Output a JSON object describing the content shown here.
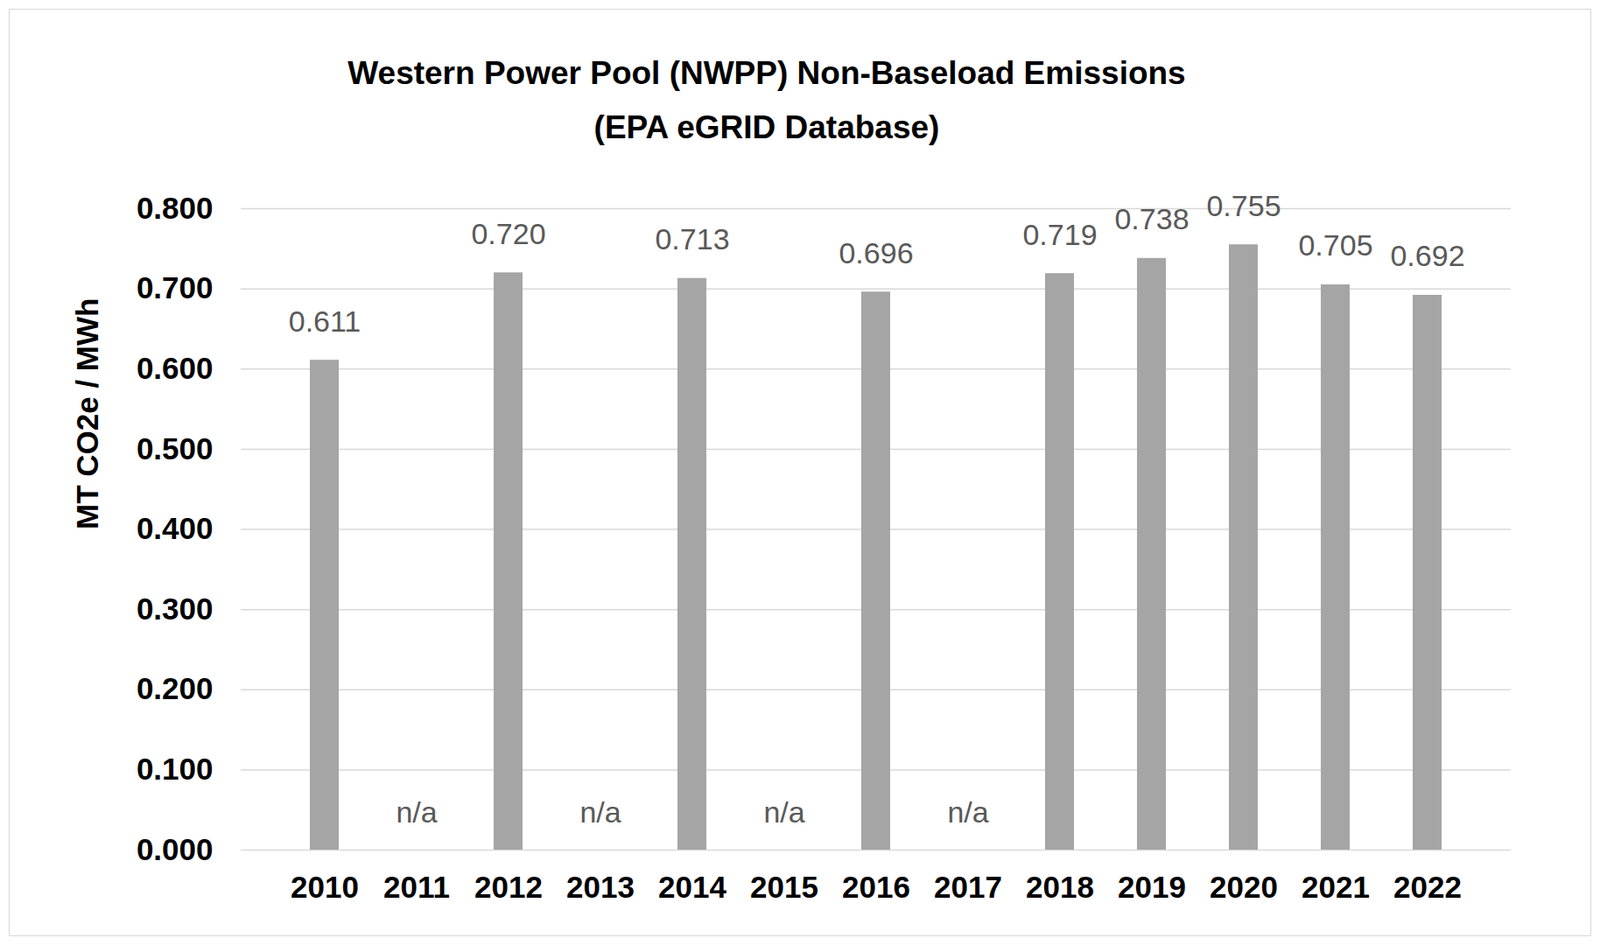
{
  "chart_data": {
    "type": "bar",
    "title": "Western Power Pool (NWPP) Non-Baseload Emissions",
    "subtitle": "(EPA eGRID Database)",
    "y_label": "MT CO2e / MWh",
    "categories": [
      "2010",
      "2011",
      "2012",
      "2013",
      "2014",
      "2015",
      "2016",
      "2017",
      "2018",
      "2019",
      "2020",
      "2021",
      "2022"
    ],
    "values": [
      0.611,
      null,
      0.72,
      null,
      0.713,
      null,
      0.696,
      null,
      0.719,
      0.738,
      0.755,
      0.705,
      0.692
    ],
    "value_labels": [
      "0.611",
      "n/a",
      "0.720",
      "n/a",
      "0.713",
      "n/a",
      "0.696",
      "n/a",
      "0.719",
      "0.738",
      "0.755",
      "0.705",
      "0.692"
    ],
    "color": "#a5a5a5",
    "ylim": [
      0,
      0.8
    ],
    "yticks": [
      {
        "value": 0,
        "label": "0.000"
      },
      {
        "value": 0.1,
        "label": "0.100"
      },
      {
        "value": 0.2,
        "label": "0.200"
      },
      {
        "value": 0.3,
        "label": "0.300"
      },
      {
        "value": 0.4,
        "label": "0.400"
      },
      {
        "value": 0.5,
        "label": "0.500"
      },
      {
        "value": 0.6,
        "label": "0.600"
      },
      {
        "value": 0.7,
        "label": "0.700"
      },
      {
        "value": 0.8,
        "label": "0.800"
      }
    ],
    "grid": true,
    "data_labels": true
  }
}
